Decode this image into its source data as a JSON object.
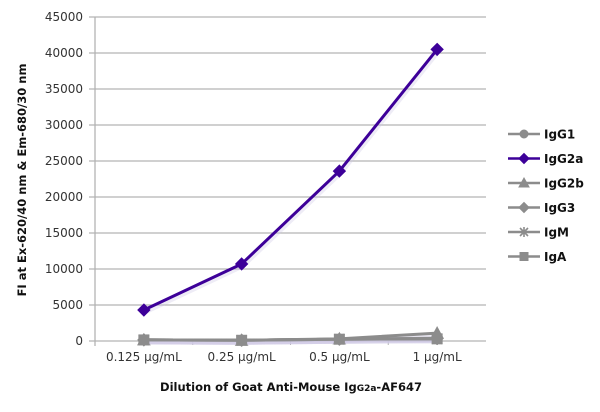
{
  "chart_data": {
    "type": "line",
    "title": "",
    "xlabel": "Dilution of Goat Anti-Mouse IgG2a-AF647",
    "xlabel_parts": {
      "pre": "Dilution of Goat Anti-Mouse Ig",
      "sub": "G2a",
      "post": "-AF647"
    },
    "ylabel": "FI at Ex-620/40 nm & Em-680/30 nm",
    "categories": [
      "0.125 µg/mL",
      "0.25 µg/mL",
      "0.5 µg/mL",
      "1 µg/mL"
    ],
    "ylim": [
      0,
      45000
    ],
    "yticks": [
      0,
      5000,
      10000,
      15000,
      20000,
      25000,
      30000,
      35000,
      40000,
      45000
    ],
    "grid": true,
    "legend_position": "right",
    "series": [
      {
        "name": "IgG1",
        "marker": "circle",
        "color": "#8c8c8c",
        "values": [
          150,
          100,
          250,
          400
        ]
      },
      {
        "name": "IgG2a",
        "marker": "diamond",
        "color": "#3d0099",
        "values": [
          4300,
          10700,
          23600,
          40500
        ]
      },
      {
        "name": "IgG2b",
        "marker": "triangle",
        "color": "#8c8c8c",
        "values": [
          150,
          100,
          300,
          1100
        ]
      },
      {
        "name": "IgG3",
        "marker": "diamond",
        "color": "#8c8c8c",
        "values": [
          150,
          100,
          250,
          350
        ]
      },
      {
        "name": "IgM",
        "marker": "star",
        "color": "#8c8c8c",
        "values": [
          150,
          100,
          250,
          300
        ]
      },
      {
        "name": "IgA",
        "marker": "square",
        "color": "#8c8c8c",
        "values": [
          150,
          100,
          250,
          300
        ]
      }
    ]
  }
}
